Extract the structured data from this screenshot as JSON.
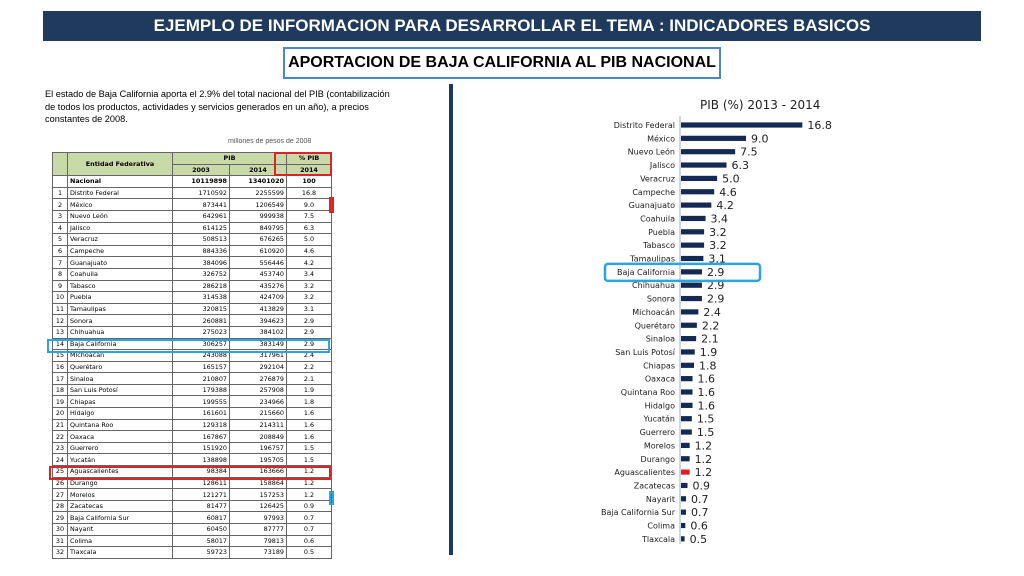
{
  "header": {
    "banner": "EJEMPLO DE INFORMACION PARA DESARROLLAR EL  TEMA : INDICADORES BASICOS",
    "subtitle": "APORTACION DE BAJA CALIFORNIA AL PIB NACIONAL"
  },
  "intro": "El estado de Baja California aporta el 2.9% del total nacional del PIB (contabilización de todos los productos, actividades y servicios generados en un año), a precios constantes de 2008.",
  "table_caption_cut": "millones de pesos de 2008",
  "table": {
    "headers": {
      "entity": "Entidad Federativa",
      "pib": "PIB",
      "pct": "% PIB",
      "y2003": "2003",
      "y2014": "2014",
      "pct_year": "2014"
    },
    "national": {
      "label": "Nacional",
      "y2003": "10119898",
      "y2014": "13401020",
      "pct": "100"
    },
    "rows": [
      [
        "1",
        "Distrito Federal",
        "1710592",
        "2255599",
        "16.8"
      ],
      [
        "2",
        "México",
        "873441",
        "1206549",
        "9.0"
      ],
      [
        "3",
        "Nuevo León",
        "642961",
        "999938",
        "7.5"
      ],
      [
        "4",
        "Jalisco",
        "614125",
        "849795",
        "6.3"
      ],
      [
        "5",
        "Veracruz",
        "508513",
        "676265",
        "5.0"
      ],
      [
        "6",
        "Campeche",
        "884336",
        "610920",
        "4.6"
      ],
      [
        "7",
        "Guanajuato",
        "384096",
        "556446",
        "4.2"
      ],
      [
        "8",
        "Coahuila",
        "326752",
        "453740",
        "3.4"
      ],
      [
        "9",
        "Tabasco",
        "286218",
        "435276",
        "3.2"
      ],
      [
        "10",
        "Puebla",
        "314538",
        "424709",
        "3.2"
      ],
      [
        "11",
        "Tamaulipas",
        "320815",
        "413829",
        "3.1"
      ],
      [
        "12",
        "Sonora",
        "260881",
        "394623",
        "2.9"
      ],
      [
        "13",
        "Chihuahua",
        "275023",
        "384102",
        "2.9"
      ],
      [
        "14",
        "Baja California",
        "306257",
        "383149",
        "2.9"
      ],
      [
        "15",
        "Michoacán",
        "243088",
        "317961",
        "2.4"
      ],
      [
        "16",
        "Querétaro",
        "165157",
        "292104",
        "2.2"
      ],
      [
        "17",
        "Sinaloa",
        "210807",
        "276879",
        "2.1"
      ],
      [
        "18",
        "San Luis Potosí",
        "179388",
        "257908",
        "1.9"
      ],
      [
        "19",
        "Chiapas",
        "199555",
        "234966",
        "1.8"
      ],
      [
        "20",
        "Hidalgo",
        "161601",
        "215660",
        "1.6"
      ],
      [
        "21",
        "Quintana Roo",
        "129318",
        "214311",
        "1.6"
      ],
      [
        "22",
        "Oaxaca",
        "167867",
        "208849",
        "1.6"
      ],
      [
        "23",
        "Guerrero",
        "151920",
        "196757",
        "1.5"
      ],
      [
        "24",
        "Yucatán",
        "138898",
        "195705",
        "1.5"
      ],
      [
        "25",
        "Aguascalientes",
        "98384",
        "163666",
        "1.2"
      ],
      [
        "26",
        "Durango",
        "128611",
        "158864",
        "1.2"
      ],
      [
        "27",
        "Morelos",
        "121271",
        "157253",
        "1.2"
      ],
      [
        "28",
        "Zacatecas",
        "81477",
        "126425",
        "0.9"
      ],
      [
        "29",
        "Baja California Sur",
        "60817",
        "97993",
        "0.7"
      ],
      [
        "30",
        "Nayarit",
        "60450",
        "87777",
        "0.7"
      ],
      [
        "31",
        "Colima",
        "58017",
        "79813",
        "0.6"
      ],
      [
        "32",
        "Tlaxcala",
        "59723",
        "73189",
        "0.5"
      ]
    ]
  },
  "chart_data": {
    "type": "bar",
    "orientation": "horizontal",
    "title": "PIB (%) 2013 - 2014",
    "categories": [
      "Distrito Federal",
      "México",
      "Nuevo León",
      "Jalisco",
      "Veracruz",
      "Campeche",
      "Guanajuato",
      "Coahuila",
      "Puebla",
      "Tabasco",
      "Tamaulipas",
      "Baja California",
      "Chihuahua",
      "Sonora",
      "Michoacán",
      "Querétaro",
      "Sinaloa",
      "San Luis Potosí",
      "Chiapas",
      "Oaxaca",
      "Quintana Roo",
      "Hidalgo",
      "Yucatán",
      "Guerrero",
      "Morelos",
      "Durango",
      "Aguascalientes",
      "Zacatecas",
      "Nayarit",
      "Baja California Sur",
      "Colima",
      "Tlaxcala"
    ],
    "values": [
      16.8,
      9.0,
      7.5,
      6.3,
      5.0,
      4.6,
      4.2,
      3.4,
      3.2,
      3.2,
      3.1,
      2.9,
      2.9,
      2.9,
      2.4,
      2.2,
      2.1,
      1.9,
      1.8,
      1.6,
      1.6,
      1.6,
      1.5,
      1.5,
      1.2,
      1.2,
      1.2,
      0.9,
      0.7,
      0.7,
      0.6,
      0.5
    ],
    "labels": [
      "16.8",
      "9.0",
      "7.5",
      "6.3",
      "5.0",
      "4.6",
      "4.2",
      "3.4",
      "3.2",
      "3.2",
      "3.1",
      "2.9",
      "2.9",
      "2.9",
      "2.4",
      "2.2",
      "2.1",
      "1.9",
      "1.8",
      "1.6",
      "1.6",
      "1.6",
      "1.5",
      "1.5",
      "1.2",
      "1.2",
      "1.2",
      "0.9",
      "0.7",
      "0.7",
      "0.6",
      "0.5"
    ],
    "xlim": [
      0,
      18
    ],
    "bar_color": "#142a55",
    "highlight_color": "#e02020",
    "highlight_index": 26,
    "callout_color": "#2aa5dd",
    "callout_index": 11
  },
  "colors": {
    "banner": "#1f3a5c",
    "table_header": "#c9d9a7",
    "red_box": "#d92525",
    "blue_box": "#2aa5dd"
  }
}
